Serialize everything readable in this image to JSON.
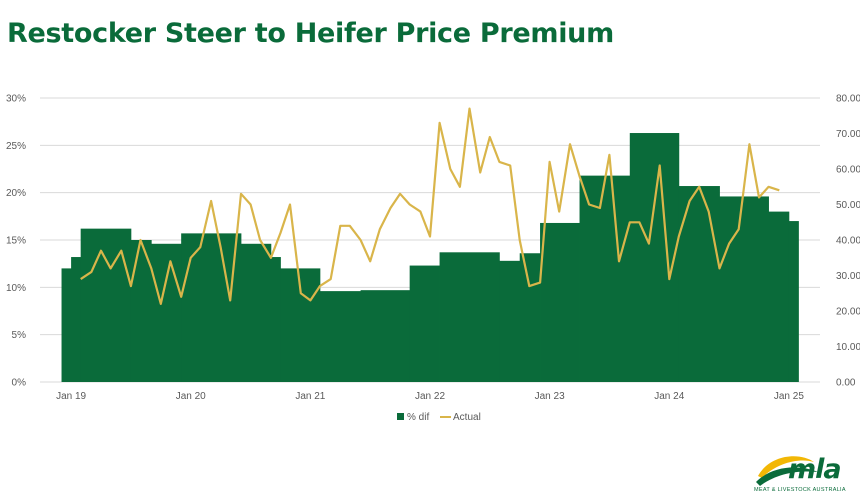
{
  "chart_data": {
    "type": "bar+line",
    "title": "Restocker Steer to Heifer Price Premium",
    "x_tick_labels": [
      "Jan 19",
      "Jan 20",
      "Jan 21",
      "Jan 22",
      "Jan 23",
      "Jan 24",
      "Jan 25"
    ],
    "y_left_ticks": [
      "0%",
      "5%",
      "10%",
      "15%",
      "20%",
      "25%",
      "30%"
    ],
    "y_left_range": [
      0,
      30
    ],
    "y_right_ticks": [
      "0.00",
      "10.00",
      "20.00",
      "30.00",
      "40.00",
      "50.00",
      "60.00",
      "70.00",
      "80.00"
    ],
    "y_right_range": [
      0,
      80
    ],
    "grid": true,
    "legend": {
      "placement": "bottom",
      "entries": [
        "% dif",
        "Actual"
      ]
    },
    "colors": {
      "bar": "#0a6b3a",
      "line": "#d9b54a",
      "grid": "#d9d9d9"
    },
    "series": [
      {
        "name": "% dif",
        "type": "bar-step",
        "axis": "left",
        "values": [
          [
            2018.92,
            12.0
          ],
          [
            2019.0,
            13.2
          ],
          [
            2019.08,
            16.2
          ],
          [
            2019.5,
            15.0
          ],
          [
            2019.67,
            14.6
          ],
          [
            2019.92,
            15.7
          ],
          [
            2020.42,
            14.6
          ],
          [
            2020.67,
            13.2
          ],
          [
            2020.75,
            12.0
          ],
          [
            2021.08,
            9.6
          ],
          [
            2021.42,
            9.7
          ],
          [
            2021.83,
            12.3
          ],
          [
            2022.08,
            13.7
          ],
          [
            2022.58,
            12.8
          ],
          [
            2022.75,
            13.6
          ],
          [
            2022.92,
            16.8
          ],
          [
            2023.25,
            21.8
          ],
          [
            2023.67,
            26.3
          ],
          [
            2024.08,
            20.7
          ],
          [
            2024.42,
            19.6
          ],
          [
            2024.83,
            18.0
          ],
          [
            2025.0,
            17.0
          ]
        ],
        "end_x": 2025.08
      },
      {
        "name": "Actual",
        "type": "line",
        "axis": "right",
        "values": [
          [
            2019.08,
            29
          ],
          [
            2019.17,
            31
          ],
          [
            2019.25,
            37
          ],
          [
            2019.33,
            32
          ],
          [
            2019.42,
            37
          ],
          [
            2019.5,
            27
          ],
          [
            2019.58,
            40
          ],
          [
            2019.67,
            32
          ],
          [
            2019.75,
            22
          ],
          [
            2019.83,
            34
          ],
          [
            2019.92,
            24
          ],
          [
            2020.0,
            35
          ],
          [
            2020.08,
            38
          ],
          [
            2020.17,
            51
          ],
          [
            2020.25,
            38
          ],
          [
            2020.33,
            23
          ],
          [
            2020.42,
            53
          ],
          [
            2020.5,
            50
          ],
          [
            2020.58,
            40
          ],
          [
            2020.67,
            35
          ],
          [
            2020.75,
            42
          ],
          [
            2020.83,
            50
          ],
          [
            2020.92,
            25
          ],
          [
            2021.0,
            23
          ],
          [
            2021.08,
            27
          ],
          [
            2021.17,
            29
          ],
          [
            2021.25,
            44
          ],
          [
            2021.33,
            44
          ],
          [
            2021.42,
            40
          ],
          [
            2021.5,
            34
          ],
          [
            2021.58,
            43
          ],
          [
            2021.67,
            49
          ],
          [
            2021.75,
            53
          ],
          [
            2021.83,
            50
          ],
          [
            2021.92,
            48
          ],
          [
            2022.0,
            41
          ],
          [
            2022.08,
            73
          ],
          [
            2022.17,
            60
          ],
          [
            2022.25,
            55
          ],
          [
            2022.33,
            77
          ],
          [
            2022.42,
            59
          ],
          [
            2022.5,
            69
          ],
          [
            2022.58,
            62
          ],
          [
            2022.67,
            61
          ],
          [
            2022.75,
            40
          ],
          [
            2022.83,
            27
          ],
          [
            2022.92,
            28
          ],
          [
            2023.0,
            62
          ],
          [
            2023.08,
            48
          ],
          [
            2023.17,
            67
          ],
          [
            2023.25,
            58
          ],
          [
            2023.33,
            50
          ],
          [
            2023.42,
            49
          ],
          [
            2023.5,
            64
          ],
          [
            2023.58,
            34
          ],
          [
            2023.67,
            45
          ],
          [
            2023.75,
            45
          ],
          [
            2023.83,
            39
          ],
          [
            2023.92,
            61
          ],
          [
            2024.0,
            29
          ],
          [
            2024.08,
            41
          ],
          [
            2024.17,
            51
          ],
          [
            2024.25,
            55
          ],
          [
            2024.33,
            48
          ],
          [
            2024.42,
            32
          ],
          [
            2024.5,
            39
          ],
          [
            2024.58,
            43
          ],
          [
            2024.67,
            67
          ],
          [
            2024.75,
            52
          ],
          [
            2024.83,
            55
          ],
          [
            2024.92,
            54
          ]
        ]
      }
    ]
  },
  "logo": {
    "word": "mla",
    "sub": "MEAT & LIVESTOCK AUSTRALIA"
  }
}
